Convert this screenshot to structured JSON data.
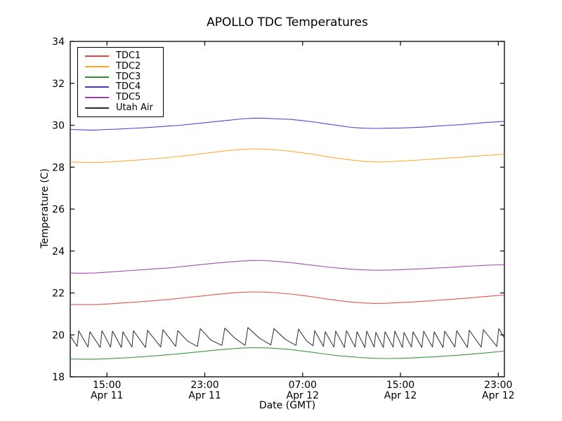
{
  "figure": {
    "title": "APOLLO TDC Temperatures",
    "xlabel": "Date (GMT)",
    "ylabel": "Temperature (C)"
  },
  "chart_data": {
    "type": "line",
    "title": "APOLLO TDC Temperatures",
    "xlabel": "Date (GMT)",
    "ylabel": "Temperature (C)",
    "x_axis_description": "time in hours, 0 = 12:00 Apr 11 GMT",
    "xlim": [
      0,
      35.5
    ],
    "ylim": [
      18,
      34
    ],
    "y_ticks": [
      18,
      20,
      22,
      24,
      26,
      28,
      30,
      32,
      34
    ],
    "x_ticks": [
      {
        "t": 3,
        "time": "15:00",
        "date": "Apr 11"
      },
      {
        "t": 11,
        "time": "23:00",
        "date": "Apr 11"
      },
      {
        "t": 19,
        "time": "07:00",
        "date": "Apr 12"
      },
      {
        "t": 27,
        "time": "15:00",
        "date": "Apr 12"
      },
      {
        "t": 35,
        "time": "23:00",
        "date": "Apr 12"
      }
    ],
    "grid": false,
    "legend_position": "upper left",
    "x_hours": [
      0,
      1,
      2,
      3,
      4,
      5,
      6,
      7,
      8,
      9,
      10,
      11,
      12,
      13,
      14,
      15,
      16,
      17,
      18,
      19,
      20,
      21,
      22,
      23,
      24,
      25,
      26,
      27,
      28,
      29,
      30,
      31,
      32,
      33,
      34,
      35,
      35.5
    ],
    "series": [
      {
        "name": "TDC1",
        "color": "#e8433c",
        "y": [
          21.45,
          21.44,
          21.44,
          21.47,
          21.51,
          21.55,
          21.59,
          21.64,
          21.69,
          21.75,
          21.81,
          21.87,
          21.93,
          21.99,
          22.03,
          22.05,
          22.04,
          22.0,
          21.95,
          21.88,
          21.8,
          21.71,
          21.63,
          21.56,
          21.52,
          21.5,
          21.51,
          21.54,
          21.57,
          21.61,
          21.65,
          21.69,
          21.73,
          21.78,
          21.83,
          21.88,
          21.9
        ]
      },
      {
        "name": "TDC2",
        "color": "#ffa328",
        "y": [
          28.25,
          28.23,
          28.22,
          28.25,
          28.28,
          28.32,
          28.36,
          28.41,
          28.46,
          28.52,
          28.59,
          28.66,
          28.73,
          28.8,
          28.85,
          28.88,
          28.86,
          28.82,
          28.76,
          28.68,
          28.6,
          28.5,
          28.42,
          28.34,
          28.28,
          28.25,
          28.26,
          28.29,
          28.32,
          28.36,
          28.4,
          28.44,
          28.47,
          28.52,
          28.56,
          28.6,
          28.62
        ]
      },
      {
        "name": "TDC3",
        "color": "#2f8f2f",
        "y": [
          18.85,
          18.84,
          18.84,
          18.86,
          18.89,
          18.92,
          18.96,
          19.0,
          19.05,
          19.1,
          19.16,
          19.22,
          19.28,
          19.33,
          19.37,
          19.39,
          19.38,
          19.35,
          19.3,
          19.23,
          19.15,
          19.07,
          19.0,
          18.95,
          18.91,
          18.88,
          18.87,
          18.88,
          18.9,
          18.93,
          18.96,
          19.0,
          19.04,
          19.09,
          19.14,
          19.2,
          19.24
        ]
      },
      {
        "name": "TDC4",
        "color": "#3a3ad9",
        "y": [
          29.8,
          29.78,
          29.77,
          29.8,
          29.82,
          29.85,
          29.88,
          29.92,
          29.96,
          30.0,
          30.06,
          30.12,
          30.18,
          30.24,
          30.3,
          30.34,
          30.33,
          30.3,
          30.28,
          30.22,
          30.15,
          30.06,
          29.98,
          29.9,
          29.86,
          29.85,
          29.86,
          29.87,
          29.89,
          29.92,
          29.96,
          30.0,
          30.03,
          30.08,
          30.13,
          30.17,
          30.18
        ]
      },
      {
        "name": "TDC5",
        "color": "#9b40a8",
        "y": [
          22.95,
          22.94,
          22.95,
          22.99,
          23.03,
          23.07,
          23.11,
          23.15,
          23.19,
          23.25,
          23.31,
          23.37,
          23.43,
          23.48,
          23.52,
          23.55,
          23.54,
          23.5,
          23.45,
          23.38,
          23.31,
          23.24,
          23.18,
          23.13,
          23.1,
          23.08,
          23.09,
          23.11,
          23.13,
          23.16,
          23.19,
          23.22,
          23.26,
          23.29,
          23.32,
          23.34,
          23.35
        ]
      },
      {
        "name": "Utah Air",
        "color": "#2b2b2b",
        "x": [
          0,
          0.57,
          0.69,
          1.45,
          1.61,
          2.45,
          2.59,
          3.3,
          3.45,
          4.18,
          4.31,
          5.05,
          5.17,
          6.15,
          6.32,
          7.4,
          7.58,
          8.62,
          8.79,
          9.6,
          10.4,
          10.63,
          11.5,
          12.4,
          12.64,
          13.5,
          14.3,
          14.53,
          15.45,
          16.4,
          16.66,
          17.55,
          18.45,
          18.67,
          19.3,
          19.85,
          19.99,
          20.7,
          20.85,
          21.55,
          21.71,
          22.42,
          22.58,
          23.3,
          23.44,
          24.1,
          24.24,
          24.85,
          24.99,
          25.6,
          25.74,
          26.4,
          26.54,
          27.16,
          27.29,
          27.9,
          28.03,
          28.75,
          28.9,
          29.62,
          29.76,
          30.48,
          30.62,
          31.45,
          31.6,
          32.48,
          32.63,
          33.6,
          33.78,
          34.88,
          35.04,
          35.5
        ],
        "y": [
          19.95,
          19.45,
          20.2,
          19.42,
          20.15,
          19.4,
          20.2,
          19.42,
          20.18,
          19.4,
          20.15,
          19.42,
          20.2,
          19.4,
          20.22,
          19.42,
          20.25,
          19.45,
          20.2,
          19.7,
          19.45,
          20.3,
          19.75,
          19.5,
          20.32,
          19.82,
          19.5,
          20.35,
          19.85,
          19.52,
          20.3,
          19.8,
          19.5,
          20.28,
          19.72,
          19.48,
          20.2,
          19.45,
          20.15,
          19.42,
          20.18,
          19.4,
          20.2,
          19.42,
          20.15,
          19.4,
          20.18,
          19.42,
          20.12,
          19.4,
          20.15,
          19.42,
          20.18,
          19.4,
          20.12,
          19.42,
          20.15,
          19.4,
          20.18,
          19.42,
          20.15,
          19.4,
          20.18,
          19.42,
          20.2,
          19.4,
          20.22,
          19.42,
          20.25,
          19.45,
          20.3,
          19.85
        ]
      }
    ]
  }
}
